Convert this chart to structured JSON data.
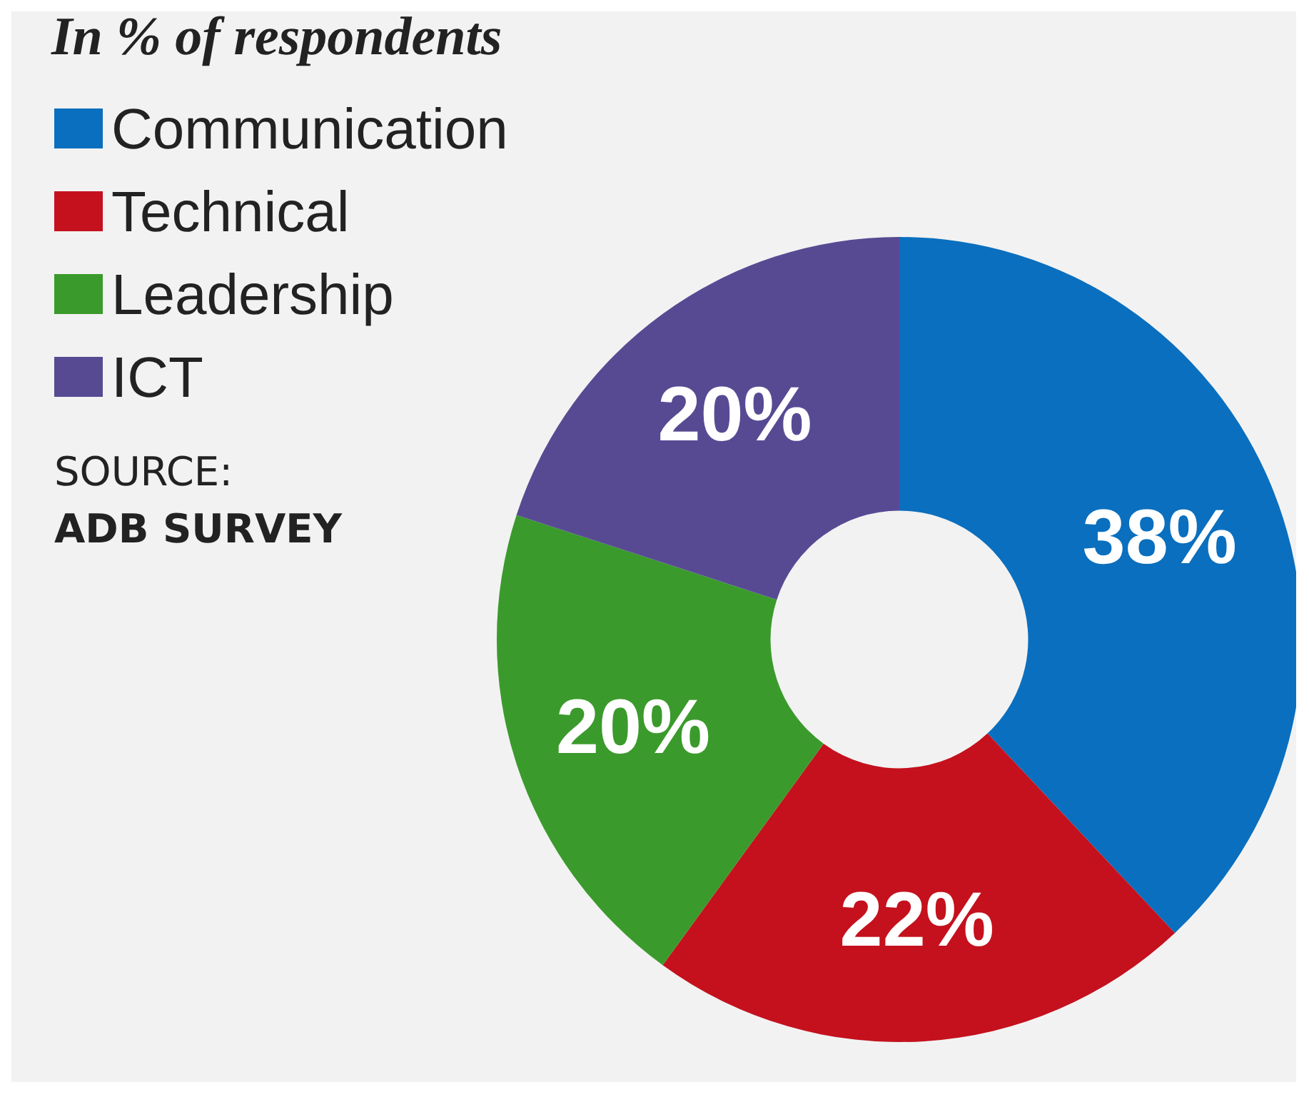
{
  "chart_data": {
    "type": "donut",
    "title": "In % of respondents",
    "categories": [
      "Communication",
      "Technical",
      "Leadership",
      "ICT"
    ],
    "values": [
      38,
      22,
      20,
      20
    ],
    "colors": [
      "#0a6fbe",
      "#c4111d",
      "#3b9a2c",
      "#574a93"
    ],
    "value_labels": [
      "38%",
      "22%",
      "20%",
      "20%"
    ],
    "legend": "top left",
    "annotations": [
      "SOURCE:",
      "ADB SURVEY"
    ]
  }
}
